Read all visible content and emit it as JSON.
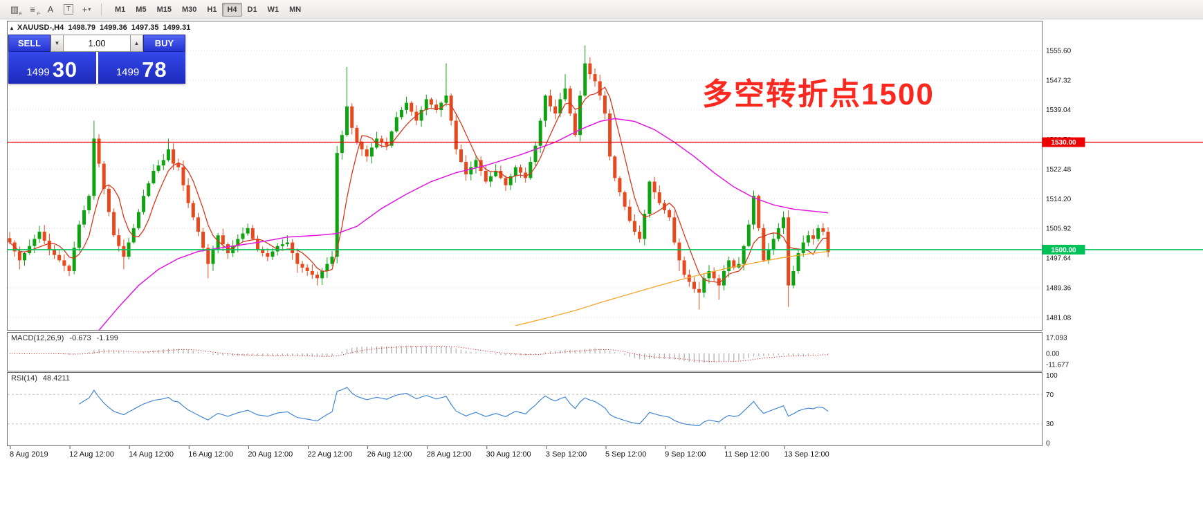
{
  "toolbar": {
    "icons": [
      {
        "name": "chart-bars-icon",
        "glyph": "▥",
        "sub": "E"
      },
      {
        "name": "indicator-list-icon",
        "glyph": "≡",
        "sub": "F"
      },
      {
        "name": "cursor-tool-icon",
        "glyph": "A"
      },
      {
        "name": "text-tool-icon",
        "glyph": "T",
        "boxed": true
      },
      {
        "name": "crosshair-tool-icon",
        "glyph": "+",
        "dropdown": true
      }
    ],
    "timeframes": [
      {
        "label": "M1"
      },
      {
        "label": "M5"
      },
      {
        "label": "M15"
      },
      {
        "label": "M30"
      },
      {
        "label": "H1"
      },
      {
        "label": "H4",
        "active": true
      },
      {
        "label": "D1"
      },
      {
        "label": "W1"
      },
      {
        "label": "MN"
      }
    ]
  },
  "symbol_header": {
    "marker": "▴",
    "symbol": "XAUUSD-,H4",
    "open": "1498.79",
    "high": "1499.36",
    "low": "1497.35",
    "close": "1499.31"
  },
  "trade_panel": {
    "sell": {
      "label": "SELL",
      "price_main": "1499",
      "price_pips": "30"
    },
    "buy": {
      "label": "BUY",
      "price_main": "1499",
      "price_pips": "78"
    },
    "volume": "1.00",
    "spinner_down_icon": "▼",
    "spinner_up_icon": "▲"
  },
  "annotation": {
    "text": "多空转折点1500",
    "color": "#fa281e"
  },
  "indicators": {
    "macd": {
      "name": "MACD(12,26,9)",
      "value_main": "-0.673",
      "value_signal": "-1.199",
      "axis_labels": [
        "17.093",
        "0.00",
        "-11.677"
      ],
      "params": [
        12,
        26,
        9
      ]
    },
    "rsi": {
      "name": "RSI(14)",
      "value": "48.4211",
      "axis_labels": [
        "100",
        "70",
        "30",
        "0"
      ],
      "period": 14,
      "levels": [
        70,
        30
      ]
    }
  },
  "price_axis": {
    "ticks": [
      "1555.60",
      "1547.32",
      "1539.04",
      "1530.76",
      "1522.48",
      "1514.20",
      "1505.92",
      "1497.64",
      "1489.36",
      "1481.08"
    ],
    "lines": [
      {
        "name": "resistance-line",
        "price": 1530.0,
        "label": "1530.00",
        "color": "#ee0000",
        "width": 1.4
      },
      {
        "name": "support-line",
        "price": 1500.0,
        "label": "1500.00",
        "color": "#00c158",
        "width": 1.6
      }
    ]
  },
  "time_axis": {
    "labels": [
      "8 Aug 2019",
      "12 Aug 12:00",
      "14 Aug 12:00",
      "16 Aug 12:00",
      "20 Aug 12:00",
      "22 Aug 12:00",
      "26 Aug 12:00",
      "28 Aug 12:00",
      "30 Aug 12:00",
      "3 Sep 12:00",
      "5 Sep 12:00",
      "9 Sep 12:00",
      "11 Sep 12:00",
      "13 Sep 12:00"
    ]
  },
  "chart_data": {
    "type": "candlestick",
    "symbol": "XAUUSD-",
    "timeframe": "H4",
    "bars": 166,
    "ylim": [
      1481.08,
      1555.6
    ],
    "colors": {
      "up": "#0fa312",
      "down": "#e5491d",
      "ma_fast": "#d6381e",
      "ma_mid": "#e018e0",
      "ma_slow": "#f4a62a",
      "macd_hist": "#b6b6b6",
      "macd_signal": "#e00000",
      "rsi": "#4386d0",
      "grid": "#dcdcdc"
    },
    "close_waypoints": [
      [
        0,
        1502
      ],
      [
        2,
        1497
      ],
      [
        4,
        1501
      ],
      [
        6,
        1505
      ],
      [
        8,
        1500
      ],
      [
        10,
        1497
      ],
      [
        12,
        1494
      ],
      [
        14,
        1507
      ],
      [
        16,
        1515
      ],
      [
        17,
        1531
      ],
      [
        18,
        1524
      ],
      [
        19,
        1517
      ],
      [
        21,
        1504
      ],
      [
        23,
        1498
      ],
      [
        25,
        1506
      ],
      [
        27,
        1515
      ],
      [
        29,
        1522
      ],
      [
        31,
        1525
      ],
      [
        32,
        1528
      ],
      [
        33,
        1524
      ],
      [
        34,
        1523
      ],
      [
        36,
        1513
      ],
      [
        38,
        1505
      ],
      [
        40,
        1496
      ],
      [
        42,
        1504
      ],
      [
        44,
        1499
      ],
      [
        46,
        1503
      ],
      [
        48,
        1506
      ],
      [
        50,
        1500
      ],
      [
        52,
        1498
      ],
      [
        54,
        1501
      ],
      [
        56,
        1502
      ],
      [
        58,
        1496
      ],
      [
        60,
        1494
      ],
      [
        62,
        1492
      ],
      [
        64,
        1496
      ],
      [
        65,
        1498
      ],
      [
        66,
        1527
      ],
      [
        67,
        1532
      ],
      [
        68,
        1540
      ],
      [
        69,
        1534
      ],
      [
        70,
        1530
      ],
      [
        72,
        1526
      ],
      [
        74,
        1531
      ],
      [
        76,
        1529
      ],
      [
        78,
        1537
      ],
      [
        80,
        1541
      ],
      [
        82,
        1536
      ],
      [
        84,
        1542
      ],
      [
        86,
        1539
      ],
      [
        88,
        1543
      ],
      [
        89,
        1536
      ],
      [
        90,
        1528
      ],
      [
        92,
        1521
      ],
      [
        94,
        1525
      ],
      [
        96,
        1519
      ],
      [
        98,
        1522
      ],
      [
        100,
        1518
      ],
      [
        102,
        1523
      ],
      [
        104,
        1520
      ],
      [
        106,
        1529
      ],
      [
        107,
        1536
      ],
      [
        108,
        1543
      ],
      [
        109,
        1540
      ],
      [
        110,
        1538
      ],
      [
        111,
        1542
      ],
      [
        112,
        1545
      ],
      [
        113,
        1538
      ],
      [
        114,
        1532
      ],
      [
        115,
        1543
      ],
      [
        116,
        1552
      ],
      [
        117,
        1549
      ],
      [
        118,
        1547
      ],
      [
        119,
        1543
      ],
      [
        120,
        1538
      ],
      [
        121,
        1526
      ],
      [
        122,
        1520
      ],
      [
        123,
        1516
      ],
      [
        124,
        1512
      ],
      [
        125,
        1508
      ],
      [
        126,
        1505
      ],
      [
        127,
        1503
      ],
      [
        128,
        1510
      ],
      [
        129,
        1519
      ],
      [
        130,
        1516
      ],
      [
        131,
        1513
      ],
      [
        132,
        1511
      ],
      [
        133,
        1509
      ],
      [
        134,
        1502
      ],
      [
        135,
        1497
      ],
      [
        136,
        1493
      ],
      [
        137,
        1491
      ],
      [
        138,
        1489
      ],
      [
        139,
        1488
      ],
      [
        140,
        1492
      ],
      [
        141,
        1494
      ],
      [
        142,
        1492
      ],
      [
        143,
        1490
      ],
      [
        144,
        1494
      ],
      [
        145,
        1497
      ],
      [
        146,
        1495
      ],
      [
        147,
        1496
      ],
      [
        148,
        1501
      ],
      [
        149,
        1507
      ],
      [
        150,
        1515
      ],
      [
        151,
        1506
      ],
      [
        152,
        1497
      ],
      [
        153,
        1500
      ],
      [
        154,
        1503
      ],
      [
        155,
        1506
      ],
      [
        156,
        1509
      ],
      [
        157,
        1490
      ],
      [
        158,
        1494
      ],
      [
        159,
        1499
      ],
      [
        160,
        1502
      ],
      [
        161,
        1504
      ],
      [
        162,
        1503
      ],
      [
        163,
        1506
      ],
      [
        164,
        1505
      ],
      [
        165,
        1499.3
      ]
    ],
    "wick_high_overrides": {
      "17": 1536,
      "32": 1531,
      "68": 1551,
      "88": 1552,
      "112": 1549,
      "116": 1557,
      "150": 1516.5
    },
    "wick_low_overrides": {
      "2": 1494.5,
      "12": 1492.6,
      "23": 1494.5,
      "40": 1492,
      "58": 1493.5,
      "62": 1490,
      "127": 1502,
      "135": 1494,
      "139": 1483.3,
      "143": 1486,
      "157": 1484
    },
    "ma_fast_period": 6,
    "ma_mid_points": [
      [
        18,
        1477.5
      ],
      [
        22,
        1484
      ],
      [
        26,
        1490
      ],
      [
        30,
        1494.5
      ],
      [
        34,
        1497.5
      ],
      [
        38,
        1499.5
      ],
      [
        44,
        1500.8
      ],
      [
        50,
        1502
      ],
      [
        56,
        1503.5
      ],
      [
        62,
        1504
      ],
      [
        66,
        1504.5
      ],
      [
        70,
        1506.5
      ],
      [
        75,
        1511.5
      ],
      [
        80,
        1515.5
      ],
      [
        85,
        1519
      ],
      [
        90,
        1521.5
      ],
      [
        96,
        1523.5
      ],
      [
        103,
        1526.5
      ],
      [
        110,
        1530
      ],
      [
        115,
        1533.5
      ],
      [
        119,
        1535.8
      ],
      [
        122,
        1536.6
      ],
      [
        126,
        1535.8
      ],
      [
        130,
        1533.5
      ],
      [
        134,
        1530
      ],
      [
        138,
        1526
      ],
      [
        142,
        1521.5
      ],
      [
        146,
        1517.5
      ],
      [
        150,
        1514.5
      ],
      [
        154,
        1512.5
      ],
      [
        158,
        1511.3
      ],
      [
        165,
        1510.3
      ]
    ],
    "ma_slow_points": [
      [
        102,
        1478.8
      ],
      [
        108,
        1480.8
      ],
      [
        114,
        1483
      ],
      [
        120,
        1485.6
      ],
      [
        126,
        1488
      ],
      [
        132,
        1490.4
      ],
      [
        138,
        1492.6
      ],
      [
        144,
        1494.6
      ],
      [
        150,
        1496.3
      ],
      [
        156,
        1497.8
      ],
      [
        161,
        1498.8
      ],
      [
        165,
        1499.5
      ]
    ]
  }
}
